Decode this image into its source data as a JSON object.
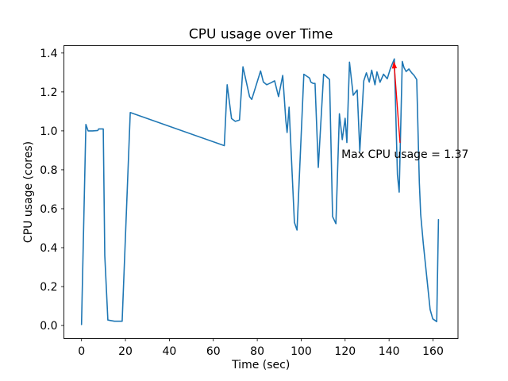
{
  "chart_data": {
    "type": "line",
    "title": "CPU usage over Time",
    "xlabel": "Time (sec)",
    "ylabel": "CPU usage (cores)",
    "xlim": [
      -8.02,
      171.38
    ],
    "ylim": [
      -0.067,
      1.438
    ],
    "xticks": [
      0,
      20,
      40,
      60,
      80,
      100,
      120,
      140,
      160
    ],
    "yticks": [
      0.0,
      0.2,
      0.4,
      0.6,
      0.8,
      1.0,
      1.2,
      1.4
    ],
    "grid": false,
    "legend": "none",
    "line_color": "#1f77b4",
    "series": [
      {
        "name": "CPU usage",
        "points": [
          [
            0,
            0.005
          ],
          [
            2,
            1.033
          ],
          [
            3,
            1.0
          ],
          [
            5,
            1.0
          ],
          [
            7.4,
            1.002
          ],
          [
            7.8,
            1.01
          ],
          [
            9.9,
            1.01
          ],
          [
            10.6,
            0.36
          ],
          [
            12,
            0.028
          ],
          [
            15,
            0.022
          ],
          [
            18.5,
            0.022
          ],
          [
            22.2,
            1.094
          ],
          [
            65,
            0.924
          ],
          [
            66.3,
            1.237
          ],
          [
            68.3,
            1.063
          ],
          [
            70,
            1.049
          ],
          [
            71.9,
            1.056
          ],
          [
            73.5,
            1.329
          ],
          [
            76.5,
            1.176
          ],
          [
            77.5,
            1.162
          ],
          [
            81.5,
            1.308
          ],
          [
            82.8,
            1.251
          ],
          [
            84.3,
            1.237
          ],
          [
            85.8,
            1.245
          ],
          [
            87.9,
            1.257
          ],
          [
            89.7,
            1.176
          ],
          [
            91.6,
            1.285
          ],
          [
            93,
            1.053
          ],
          [
            93.6,
            0.992
          ],
          [
            94.5,
            1.122
          ],
          [
            96.9,
            0.53
          ],
          [
            98.1,
            0.49
          ],
          [
            101.2,
            1.291
          ],
          [
            103.8,
            1.271
          ],
          [
            104.4,
            1.251
          ],
          [
            105.4,
            1.244
          ],
          [
            106.3,
            1.244
          ],
          [
            107.8,
            0.812
          ],
          [
            110.2,
            1.291
          ],
          [
            112.2,
            1.271
          ],
          [
            112.9,
            1.264
          ],
          [
            114.3,
            0.56
          ],
          [
            115.8,
            0.523
          ],
          [
            117.4,
            1.088
          ],
          [
            118.7,
            0.955
          ],
          [
            120,
            1.065
          ],
          [
            120.8,
            0.94
          ],
          [
            122,
            1.353
          ],
          [
            123.7,
            1.183
          ],
          [
            125.5,
            1.21
          ],
          [
            126.7,
            0.895
          ],
          [
            128.5,
            1.257
          ],
          [
            129.7,
            1.298
          ],
          [
            131,
            1.251
          ],
          [
            132.1,
            1.312
          ],
          [
            133.6,
            1.237
          ],
          [
            134.5,
            1.303
          ],
          [
            135.9,
            1.25
          ],
          [
            137.5,
            1.291
          ],
          [
            139.2,
            1.268
          ],
          [
            140.6,
            1.32
          ],
          [
            142.4,
            1.37
          ],
          [
            143.8,
            0.775
          ],
          [
            144.6,
            0.685
          ],
          [
            146,
            1.357
          ],
          [
            146.8,
            1.325
          ],
          [
            147.8,
            1.305
          ],
          [
            149,
            1.318
          ],
          [
            150.3,
            1.298
          ],
          [
            151.4,
            1.285
          ],
          [
            152.6,
            1.264
          ],
          [
            153.8,
            0.734
          ],
          [
            154.4,
            0.571
          ],
          [
            155.6,
            0.421
          ],
          [
            158.7,
            0.082
          ],
          [
            159.9,
            0.034
          ],
          [
            161.7,
            0.02
          ],
          [
            162.5,
            0.544
          ]
        ]
      }
    ],
    "annotation": {
      "text": "Max CPU usage = 1.37",
      "max_value": 1.37,
      "color": "#ff0000",
      "text_pos": [
        118.3,
        0.861
      ],
      "arrow_from": [
        145.0,
        0.938
      ],
      "arrow_to": [
        142.2,
        1.358
      ]
    }
  }
}
